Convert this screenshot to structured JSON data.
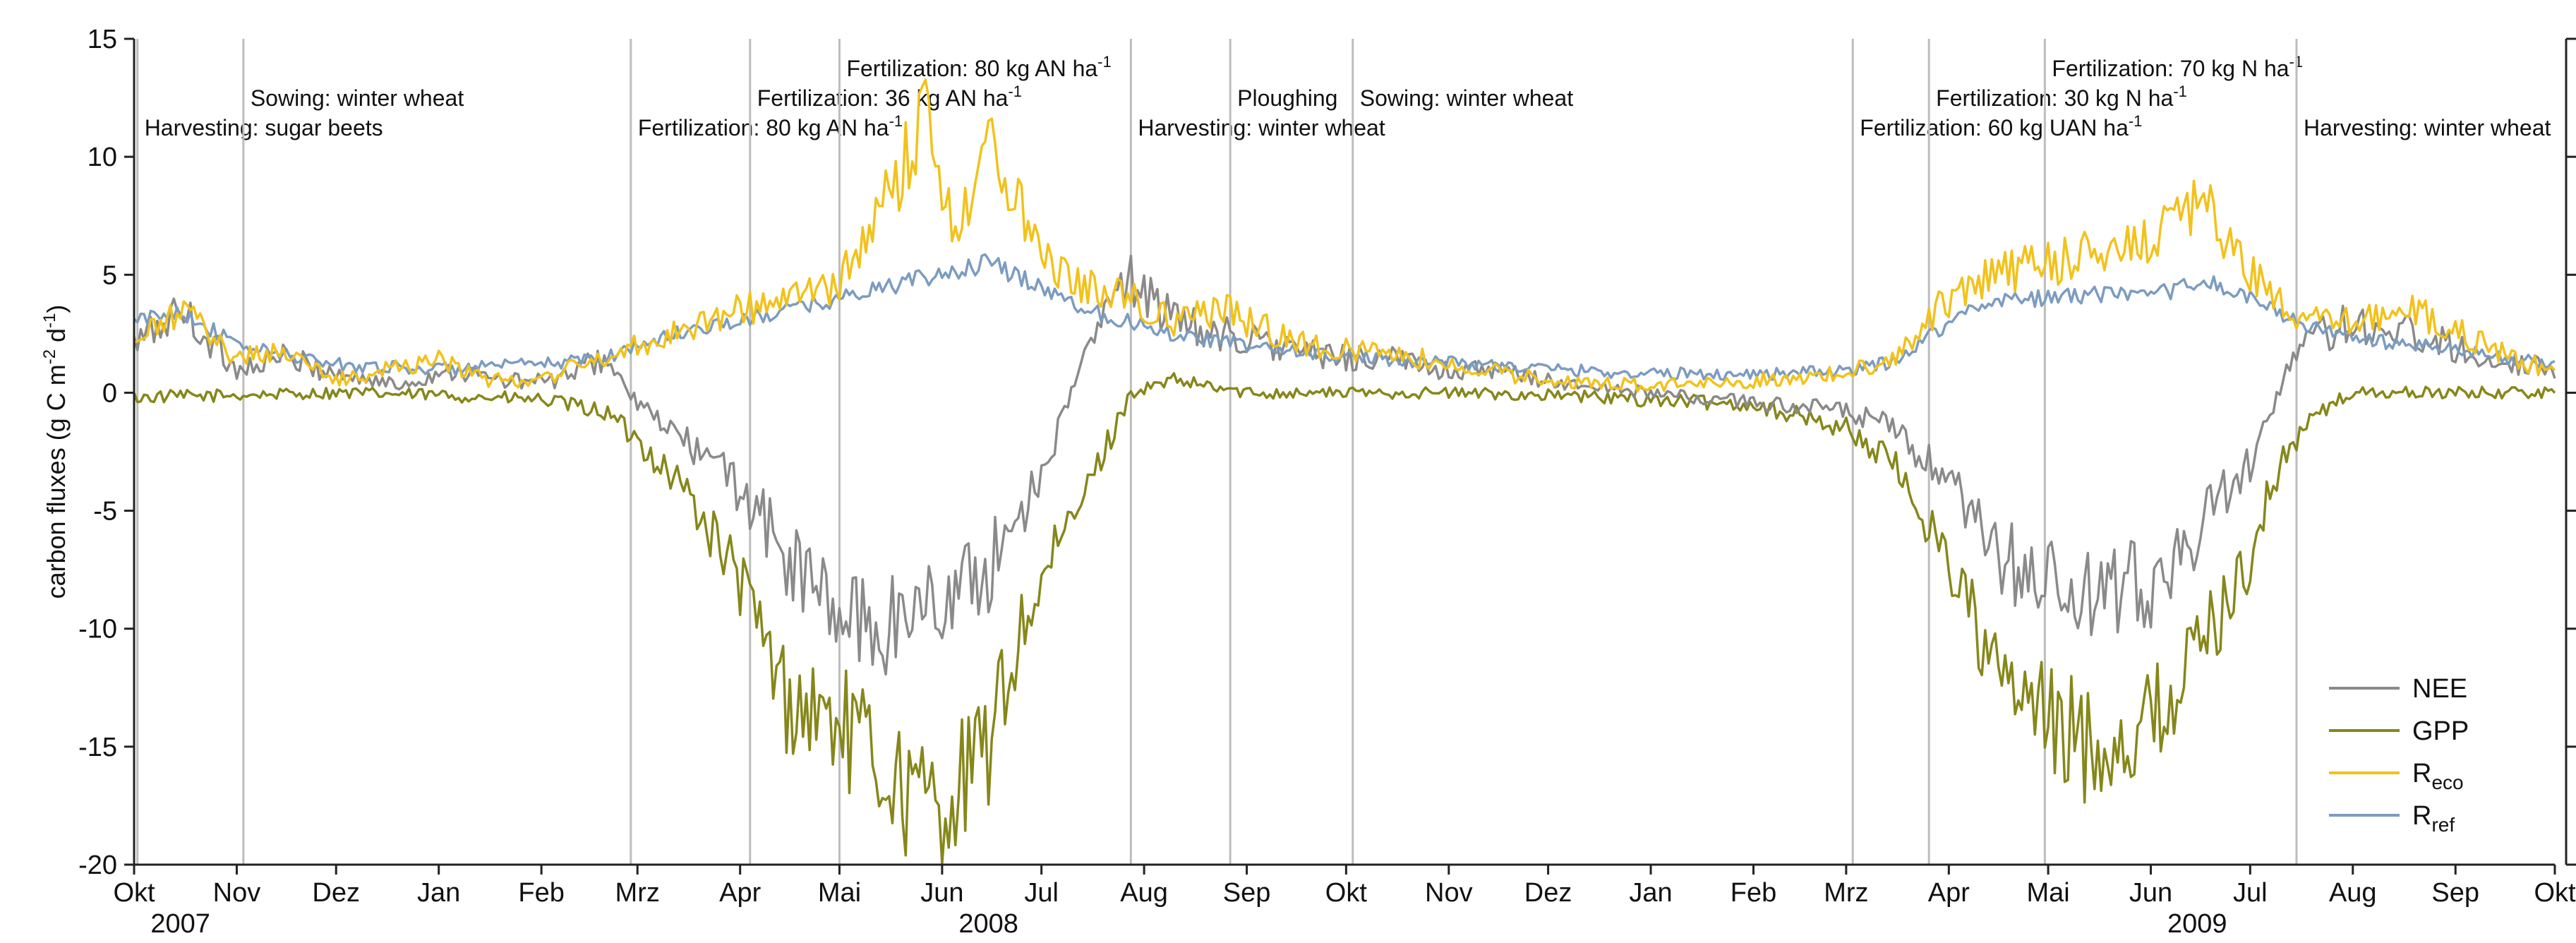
{
  "chart_data": {
    "type": "line",
    "ylabel": "carbon fluxes (g C m",
    "ylabel_sup1": "-2",
    "ylabel_mid": " d",
    "ylabel_sup2": "-1",
    "ylabel_end": ")",
    "ylim": [
      -20,
      15
    ],
    "yticks": [
      15,
      10,
      5,
      0,
      -5,
      -10,
      -15,
      -20
    ],
    "xlim": [
      "2007-10-01",
      "2009-10-01"
    ],
    "month_labels": [
      "Okt",
      "Nov",
      "Dez",
      "Jan",
      "Feb",
      "Mrz",
      "Apr",
      "Mai",
      "Jun",
      "Jul",
      "Aug",
      "Sep",
      "Okt",
      "Nov",
      "Dez",
      "Jan",
      "Feb",
      "Mrz",
      "Apr",
      "Mai",
      "Jun",
      "Jul",
      "Aug",
      "Sep",
      "Okt"
    ],
    "month_dates": [
      "2007-10-01",
      "2007-11-01",
      "2007-12-01",
      "2008-01-01",
      "2008-02-01",
      "2008-03-01",
      "2008-04-01",
      "2008-05-01",
      "2008-06-01",
      "2008-07-01",
      "2008-08-01",
      "2008-09-01",
      "2008-10-01",
      "2008-11-01",
      "2008-12-01",
      "2009-01-01",
      "2009-02-01",
      "2009-03-01",
      "2009-04-01",
      "2009-05-01",
      "2009-06-01",
      "2009-07-01",
      "2009-08-01",
      "2009-09-01",
      "2009-10-01"
    ],
    "year_labels": [
      {
        "text": "2007",
        "date": "2007-10-15"
      },
      {
        "text": "2008",
        "date": "2008-06-15"
      },
      {
        "text": "2009",
        "date": "2009-06-15"
      }
    ],
    "grid": false,
    "legend": {
      "placement": "bottom-right",
      "entries": [
        {
          "base": "NEE",
          "sub": ""
        },
        {
          "base": "GPP",
          "sub": ""
        },
        {
          "base": "R",
          "sub": "eco"
        },
        {
          "base": "R",
          "sub": "ref"
        }
      ]
    },
    "events": [
      {
        "date": "2007-10-02",
        "text": "Harvesting: sugar beets",
        "sup": "",
        "row": 4
      },
      {
        "date": "2007-11-03",
        "text": "Sowing: winter wheat",
        "sup": "",
        "row": 3
      },
      {
        "date": "2008-02-28",
        "text": "Fertilization: 80 kg AN ha",
        "sup": "-1",
        "row": 4
      },
      {
        "date": "2008-04-04",
        "text": "Fertilization: 36 kg AN ha",
        "sup": "-1",
        "row": 3
      },
      {
        "date": "2008-05-01",
        "text": "Fertilization: 80 kg AN ha",
        "sup": "-1",
        "row": 2
      },
      {
        "date": "2008-07-28",
        "text": "Harvesting: winter wheat",
        "sup": "",
        "row": 4
      },
      {
        "date": "2008-08-27",
        "text": "Ploughing",
        "sup": "",
        "row": 3
      },
      {
        "date": "2008-10-03",
        "text": "Sowing: winter wheat",
        "sup": "",
        "row": 3
      },
      {
        "date": "2009-03-03",
        "text": "Fertilization: 60 kg UAN ha",
        "sup": "-1",
        "row": 4
      },
      {
        "date": "2009-03-26",
        "text": "Fertilization: 30 kg N ha",
        "sup": "-1",
        "row": 3
      },
      {
        "date": "2009-04-30",
        "text": "Fertilization: 70 kg N ha",
        "sup": "-1",
        "row": 2
      },
      {
        "date": "2009-07-15",
        "text": "Harvesting: winter wheat",
        "sup": "",
        "row": 4
      }
    ],
    "colors": {
      "NEE": "#8a8a8a",
      "GPP": "#86871a",
      "Reco": "#f2c21b",
      "Rref": "#7c9cc0",
      "event_line": "#bdbdbd"
    },
    "series": [
      {
        "key": "NEE",
        "name": "NEE",
        "x": [
          "2007-10-01",
          "2007-10-15",
          "2007-11-01",
          "2007-11-15",
          "2007-12-01",
          "2007-12-20",
          "2008-01-05",
          "2008-01-20",
          "2008-02-05",
          "2008-02-20",
          "2008-03-01",
          "2008-03-15",
          "2008-04-01",
          "2008-04-15",
          "2008-05-01",
          "2008-05-15",
          "2008-05-25",
          "2008-06-05",
          "2008-06-15",
          "2008-06-25",
          "2008-07-05",
          "2008-07-15",
          "2008-07-28",
          "2008-08-10",
          "2008-08-25",
          "2008-09-10",
          "2008-09-25",
          "2008-10-10",
          "2008-11-01",
          "2008-11-20",
          "2008-12-10",
          "2009-01-01",
          "2009-01-20",
          "2009-02-10",
          "2009-03-01",
          "2009-03-15",
          "2009-04-01",
          "2009-04-15",
          "2009-05-01",
          "2009-05-15",
          "2009-06-01",
          "2009-06-15",
          "2009-07-01",
          "2009-07-15",
          "2009-08-01",
          "2009-08-20",
          "2009-09-10",
          "2009-10-01"
        ],
        "values": [
          2.0,
          3.5,
          1.0,
          1.5,
          0.8,
          0.3,
          1.0,
          0.5,
          0.5,
          1.5,
          -0.5,
          -2.0,
          -4.0,
          -7.0,
          -9.5,
          -10.0,
          -9.0,
          -8.5,
          -7.5,
          -5.0,
          -2.0,
          2.0,
          5.0,
          3.0,
          2.5,
          2.0,
          1.5,
          1.5,
          1.0,
          0.8,
          0.3,
          0.0,
          -0.3,
          -0.5,
          -0.8,
          -1.5,
          -4.0,
          -7.0,
          -8.0,
          -9.0,
          -8.0,
          -6.0,
          -3.0,
          2.0,
          3.0,
          2.5,
          1.5,
          1.0
        ]
      },
      {
        "key": "GPP",
        "name": "GPP",
        "x": [
          "2007-10-01",
          "2007-11-01",
          "2007-12-01",
          "2008-01-01",
          "2008-02-01",
          "2008-02-20",
          "2008-03-01",
          "2008-03-15",
          "2008-04-01",
          "2008-04-15",
          "2008-05-01",
          "2008-05-15",
          "2008-05-25",
          "2008-06-05",
          "2008-06-15",
          "2008-06-25",
          "2008-07-05",
          "2008-07-15",
          "2008-07-28",
          "2008-08-10",
          "2008-09-01",
          "2008-10-01",
          "2008-11-01",
          "2008-12-01",
          "2009-01-01",
          "2009-02-01",
          "2009-03-01",
          "2009-03-15",
          "2009-04-01",
          "2009-04-15",
          "2009-05-01",
          "2009-05-15",
          "2009-06-01",
          "2009-06-15",
          "2009-07-01",
          "2009-07-10",
          "2009-07-20",
          "2009-08-01",
          "2009-09-01",
          "2009-10-01"
        ],
        "values": [
          -0.2,
          -0.1,
          0.0,
          -0.1,
          -0.3,
          -0.8,
          -2.0,
          -4.0,
          -8.0,
          -13.0,
          -14.0,
          -16.0,
          -17.5,
          -17.0,
          -15.0,
          -10.0,
          -7.0,
          -4.0,
          0.0,
          0.5,
          0.0,
          0.0,
          0.0,
          -0.1,
          -0.3,
          -0.5,
          -1.5,
          -3.0,
          -7.0,
          -12.0,
          -14.0,
          -15.0,
          -14.0,
          -11.0,
          -7.0,
          -3.0,
          -1.0,
          0.0,
          0.0,
          0.0
        ]
      },
      {
        "key": "Reco",
        "name": "Reco",
        "x": [
          "2007-10-01",
          "2007-10-15",
          "2007-11-01",
          "2007-11-15",
          "2007-12-01",
          "2008-01-01",
          "2008-01-15",
          "2008-02-01",
          "2008-02-20",
          "2008-03-01",
          "2008-03-20",
          "2008-04-01",
          "2008-04-15",
          "2008-05-01",
          "2008-05-10",
          "2008-05-20",
          "2008-05-27",
          "2008-06-05",
          "2008-06-15",
          "2008-06-25",
          "2008-07-05",
          "2008-07-15",
          "2008-07-28",
          "2008-08-10",
          "2008-08-25",
          "2008-09-10",
          "2008-09-25",
          "2008-10-10",
          "2008-11-01",
          "2008-12-01",
          "2009-01-01",
          "2009-02-01",
          "2009-03-01",
          "2009-03-15",
          "2009-04-01",
          "2009-04-15",
          "2009-05-01",
          "2009-05-15",
          "2009-06-01",
          "2009-06-10",
          "2009-06-20",
          "2009-07-01",
          "2009-07-15",
          "2009-08-01",
          "2009-08-20",
          "2009-09-10",
          "2009-10-01"
        ],
        "values": [
          2.0,
          3.5,
          1.5,
          1.8,
          0.5,
          1.5,
          0.5,
          0.6,
          1.5,
          2.0,
          3.0,
          3.5,
          4.0,
          4.5,
          7.0,
          9.5,
          12.0,
          7.0,
          10.5,
          8.0,
          5.5,
          4.5,
          4.0,
          3.0,
          3.5,
          2.5,
          1.8,
          1.8,
          1.2,
          0.5,
          0.3,
          0.5,
          0.8,
          1.5,
          4.0,
          5.0,
          5.5,
          6.0,
          6.5,
          8.0,
          7.5,
          5.0,
          3.0,
          3.0,
          3.5,
          2.0,
          0.8
        ]
      },
      {
        "key": "Rref",
        "name": "Rref",
        "x": [
          "2007-10-01",
          "2007-10-15",
          "2007-11-01",
          "2007-12-01",
          "2008-01-01",
          "2008-02-01",
          "2008-02-20",
          "2008-03-01",
          "2008-03-20",
          "2008-04-01",
          "2008-04-15",
          "2008-05-01",
          "2008-05-15",
          "2008-06-01",
          "2008-06-15",
          "2008-07-01",
          "2008-07-15",
          "2008-07-28",
          "2008-08-10",
          "2008-09-01",
          "2008-10-01",
          "2008-11-01",
          "2008-12-01",
          "2009-01-01",
          "2009-02-01",
          "2009-03-01",
          "2009-03-15",
          "2009-04-01",
          "2009-04-15",
          "2009-05-01",
          "2009-05-15",
          "2009-06-01",
          "2009-06-15",
          "2009-07-01",
          "2009-07-15",
          "2009-08-01",
          "2009-09-01",
          "2009-10-01"
        ],
        "values": [
          3.0,
          3.5,
          2.0,
          1.2,
          1.0,
          1.2,
          1.5,
          2.0,
          2.8,
          3.0,
          3.5,
          4.0,
          4.5,
          5.0,
          5.5,
          4.5,
          3.5,
          3.0,
          2.5,
          2.0,
          1.5,
          1.3,
          1.0,
          0.8,
          0.8,
          0.9,
          1.3,
          3.0,
          4.0,
          4.0,
          4.2,
          4.0,
          4.8,
          4.0,
          3.0,
          2.3,
          1.8,
          1.2
        ]
      }
    ]
  }
}
